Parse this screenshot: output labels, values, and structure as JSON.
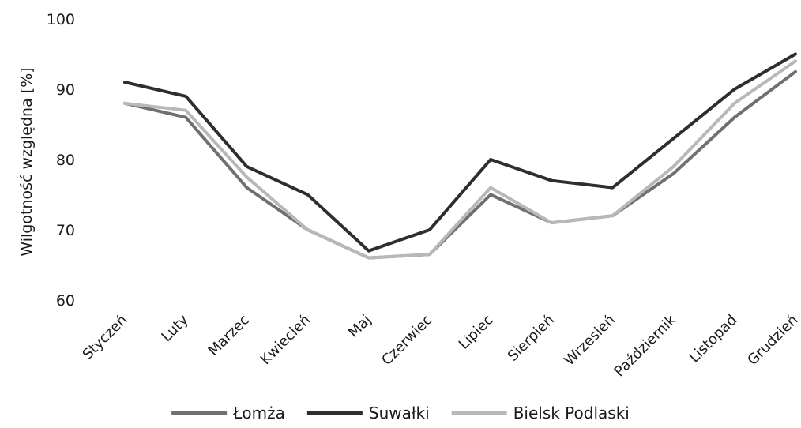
{
  "chart_data": {
    "type": "line",
    "categories": [
      "Styczeń",
      "Luty",
      "Marzec",
      "Kwiecień",
      "Maj",
      "Czerwiec",
      "Lipiec",
      "Sierpień",
      "Wrzesień",
      "Październik",
      "Listopad",
      "Grudzień"
    ],
    "ylabel": "Wilgotność względna [%]",
    "xlabel": "",
    "ylim": [
      60,
      100
    ],
    "yticks": [
      60,
      70,
      80,
      90,
      100
    ],
    "grid": false,
    "legend_position": "bottom",
    "series": [
      {
        "name": "Łomża",
        "color": "#707070",
        "values": [
          88,
          86,
          76,
          70,
          66,
          66.5,
          75,
          71,
          72,
          78,
          86,
          92.5
        ]
      },
      {
        "name": "Suwałki",
        "color": "#2e2e2e",
        "values": [
          91,
          89,
          79,
          75,
          67,
          70,
          80,
          77,
          76,
          83,
          90,
          95
        ]
      },
      {
        "name": "Bielsk Podlaski",
        "color": "#b8b8b8",
        "values": [
          88,
          87,
          77.5,
          70,
          66,
          66.5,
          76,
          71,
          72,
          79,
          88,
          94
        ]
      }
    ]
  }
}
